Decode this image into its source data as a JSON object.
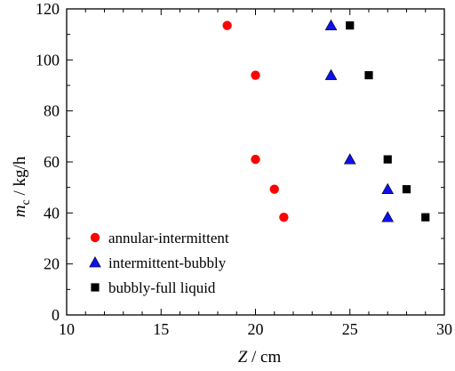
{
  "chart_data": {
    "type": "scatter",
    "xlabel": {
      "var": "Z",
      "unit": " / cm"
    },
    "ylabel": {
      "var": "m",
      "sub": "c",
      "unit": " / kg/h"
    },
    "xlim": [
      10,
      30
    ],
    "ylim": [
      0,
      120
    ],
    "xticks": [
      "10",
      "15",
      "20",
      "25",
      "30"
    ],
    "yticks": [
      "0",
      "20",
      "40",
      "60",
      "80",
      "100",
      "120"
    ],
    "x_minor_step": 1,
    "y_minor_step": 10,
    "grid": false,
    "legend_position": "bottom-left",
    "series": [
      {
        "name": "annular-intermittent",
        "marker": "circle",
        "color": "#ff0000",
        "points": [
          [
            18.5,
            113.5
          ],
          [
            20,
            94
          ],
          [
            20,
            61
          ],
          [
            21,
            49.3
          ],
          [
            21.5,
            38.3
          ]
        ]
      },
      {
        "name": "intermittent-bubbly",
        "marker": "triangle",
        "color": "#1010ee",
        "points": [
          [
            24,
            113.5
          ],
          [
            24,
            94
          ],
          [
            25,
            61
          ],
          [
            27,
            49.3
          ],
          [
            27,
            38.3
          ]
        ]
      },
      {
        "name": "bubbly-full liquid",
        "marker": "square",
        "color": "#000000",
        "points": [
          [
            25,
            113.5
          ],
          [
            26,
            94
          ],
          [
            27,
            61
          ],
          [
            28,
            49.3
          ],
          [
            29,
            38.3
          ]
        ]
      }
    ]
  }
}
